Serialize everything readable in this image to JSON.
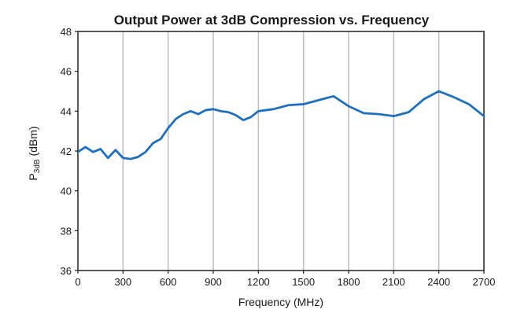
{
  "chart_data": {
    "type": "line",
    "title": "Output Power at 3dB Compression vs. Frequency",
    "xlabel": "Frequency (MHz)",
    "ylabel_main": "P",
    "ylabel_sub": "3dB",
    "ylabel_tail": " (dBm)",
    "xlim": [
      0,
      2700
    ],
    "ylim": [
      36,
      48
    ],
    "xticks": [
      "0",
      "300",
      "600",
      "900",
      "1200",
      "1500",
      "1800",
      "2100",
      "2400",
      "2700"
    ],
    "yticks": [
      "36",
      "38",
      "40",
      "42",
      "44",
      "46",
      "48"
    ],
    "grid": "vertical",
    "colors": {
      "series": "#1f6fbf",
      "grid": "#bdbdbd",
      "frame": "#222222"
    },
    "series": [
      {
        "x": [
          0,
          50,
          100,
          150,
          200,
          250,
          300,
          350,
          400,
          450,
          500,
          550,
          600,
          650,
          700,
          750,
          800,
          850,
          900,
          950,
          1000,
          1050,
          1100,
          1150,
          1200,
          1250,
          1300,
          1400,
          1500,
          1600,
          1700,
          1800,
          1900,
          2000,
          2100,
          2200,
          2300,
          2400,
          2500,
          2600,
          2700
        ],
        "values": [
          41.95,
          42.2,
          41.95,
          42.1,
          41.65,
          42.05,
          41.65,
          41.6,
          41.7,
          41.95,
          42.4,
          42.6,
          43.15,
          43.6,
          43.85,
          44.0,
          43.85,
          44.05,
          44.1,
          44.0,
          43.95,
          43.8,
          43.55,
          43.7,
          44.0,
          44.05,
          44.1,
          44.3,
          44.35,
          44.55,
          44.75,
          44.25,
          43.9,
          43.85,
          43.75,
          43.95,
          44.6,
          45.0,
          44.7,
          44.35,
          43.75
        ]
      }
    ]
  }
}
